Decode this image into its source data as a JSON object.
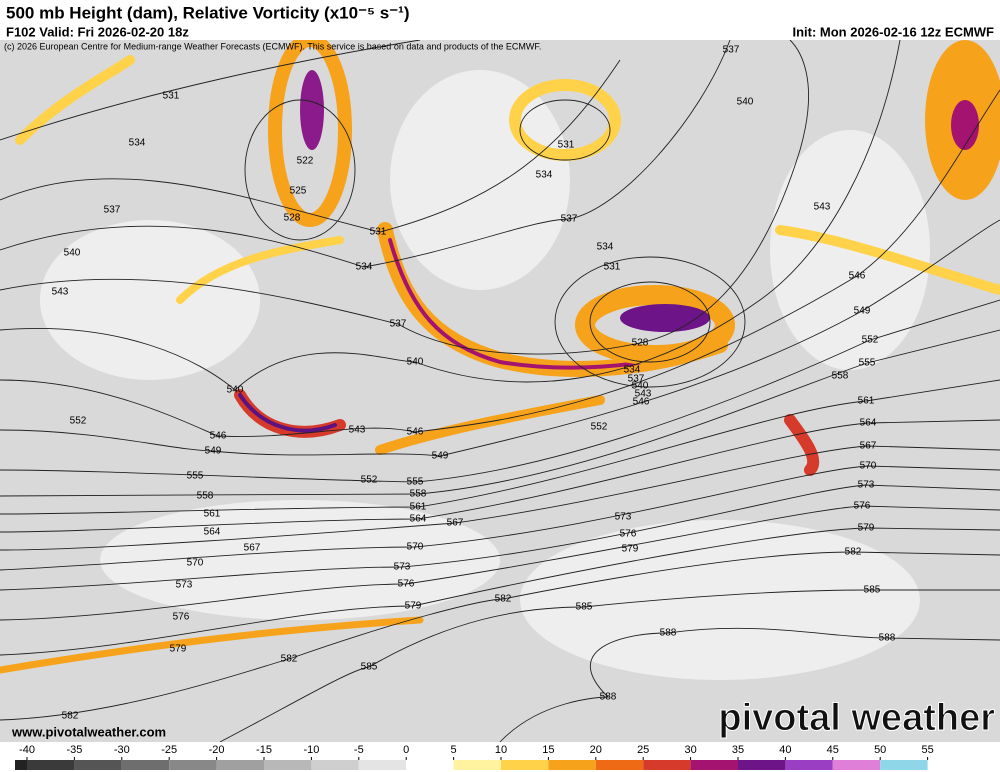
{
  "header": {
    "title": "500 mb Height (dam), Relative Vorticity (x10⁻⁵ s⁻¹)",
    "valid": "F102 Valid: Fri 2026-02-20 18z",
    "init": "Init: Mon 2026-02-16 12z ECMWF",
    "credit": "(c) 2026 European Centre for Medium-range Weather Forecasts (ECMWF). This service is based on data and products of the ECMWF."
  },
  "map": {
    "contour_labels": [
      "531",
      "534",
      "537",
      "540",
      "543",
      "552",
      "546",
      "549",
      "555",
      "558",
      "561",
      "564",
      "567",
      "570",
      "573",
      "576",
      "579",
      "582",
      "522",
      "525",
      "528",
      "531",
      "534",
      "537",
      "540",
      "540",
      "543",
      "546",
      "549",
      "552",
      "555",
      "558",
      "561",
      "564",
      "567",
      "570",
      "573",
      "576",
      "579",
      "582",
      "585",
      "582",
      "585",
      "588",
      "588",
      "588",
      "585",
      "582",
      "579",
      "576",
      "573",
      "570",
      "567",
      "564",
      "561",
      "558",
      "555",
      "552",
      "549",
      "546",
      "543",
      "540",
      "537",
      "537",
      "534",
      "531",
      "534",
      "531",
      "528",
      "534",
      "537",
      "540",
      "543",
      "546",
      "552",
      "573",
      "576",
      "579"
    ]
  },
  "footer": {
    "website": "www.pivotalweather.com",
    "logo": "pivotal weather"
  },
  "colorbar": {
    "ticks": [
      -40,
      -35,
      -30,
      -25,
      -20,
      -15,
      -10,
      -5,
      0,
      5,
      10,
      15,
      20,
      25,
      30,
      35,
      40,
      45,
      50,
      55
    ],
    "colors": [
      "#3a3a3a",
      "#555555",
      "#6e6e6e",
      "#888888",
      "#a0a0a0",
      "#b8b8b8",
      "#cfcfcf",
      "#e4e4e4",
      "#ffffff",
      "#fff3a0",
      "#ffd24a",
      "#f7a21b",
      "#ee6a14",
      "#d63a2a",
      "#a3136f",
      "#6d1488",
      "#9a3fc4",
      "#e07fd8",
      "#8fd6e8"
    ]
  }
}
